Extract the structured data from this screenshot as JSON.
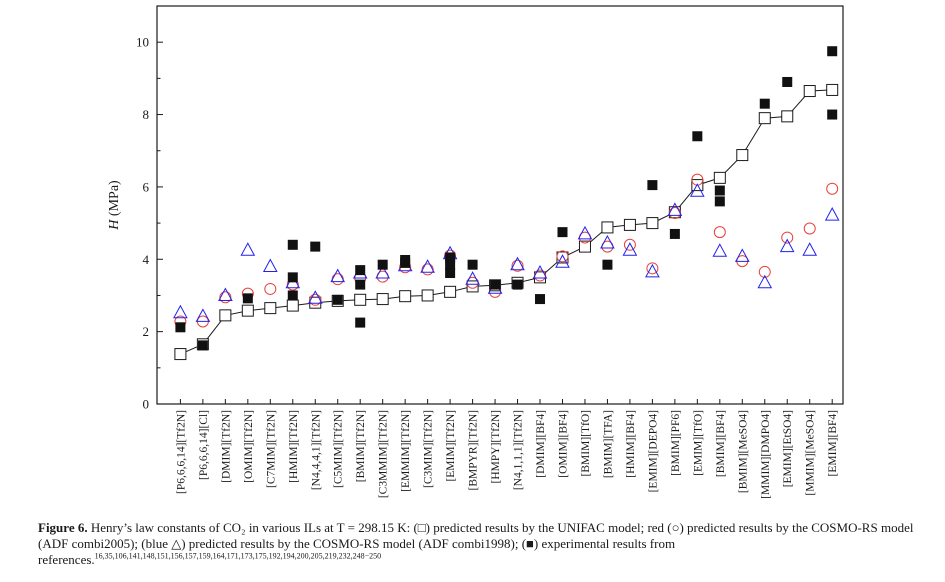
{
  "chart_data": {
    "type": "scatter",
    "title": "",
    "xlabel": "",
    "ylabel": "H (MPa)",
    "ylabel_italic_part": "H",
    "ylabel_unit_part": " (MPa)",
    "ylim": [
      0,
      11
    ],
    "yticks": [
      0,
      2,
      4,
      6,
      8,
      10
    ],
    "categories": [
      "[P6,6,6,14][Tf2N]",
      "[P6,6,6,14][Cl]",
      "[DMIM][Tf2N]",
      "[OMIM][Tf2N]",
      "[C7MIM][Tf2N]",
      "[HMIM][Tf2N]",
      "[N4,4,4,1][Tf2N]",
      "[C5MIM][Tf2N]",
      "[BMIM][Tf2N]",
      "[C3MMIM][Tf2N]",
      "[EMMIM][Tf2N]",
      "[C3MIM][Tf2N]",
      "[EMIM][Tf2N]",
      "[BMPYR][Tf2N]",
      "[HMPY][Tf2N]",
      "[N4,1,1,1][Tf2N]",
      "[DMIM][BF4]",
      "[OMIM][BF4]",
      "[BMIM][TfO]",
      "[BMIM][TFA]",
      "[HMIM][BF4]",
      "[EMIM][DEPO4]",
      "[BMIM][PF6]",
      "[EMIM][TfO]",
      "[BMIM][BF4]",
      "[BMIM][MeSO4]",
      "[MMIM][DMPO4]",
      "[EMIM][EtSO4]",
      "[MMIM][MeSO4]",
      "[EMIM][BF4]"
    ],
    "series": [
      {
        "name": "UNIFAC",
        "marker": "open-square",
        "color": "#1a1a1a",
        "line": true,
        "values": [
          1.38,
          1.65,
          2.45,
          2.58,
          2.65,
          2.72,
          2.8,
          2.85,
          2.88,
          2.9,
          2.98,
          3.0,
          3.1,
          3.25,
          3.28,
          3.35,
          3.5,
          4.05,
          4.35,
          4.88,
          4.95,
          5.0,
          5.3,
          6.05,
          6.25,
          6.88,
          7.9,
          7.95,
          8.65,
          8.68
        ]
      },
      {
        "name": "COSMO-RS (ADF combi2005)",
        "marker": "open-circle",
        "color": "#e8403a",
        "line": false,
        "values": [
          2.28,
          2.28,
          2.95,
          3.05,
          3.18,
          3.3,
          2.88,
          3.45,
          3.48,
          3.52,
          3.78,
          3.72,
          4.1,
          3.35,
          3.1,
          3.82,
          3.55,
          4.08,
          4.6,
          4.35,
          4.4,
          3.75,
          5.28,
          6.2,
          4.75,
          3.95,
          3.65,
          4.6,
          4.85,
          5.95
        ]
      },
      {
        "name": "COSMO-RS (ADF combi1998)",
        "marker": "open-triangle",
        "color": "#2222ee",
        "line": false,
        "values": [
          2.52,
          2.42,
          3.0,
          4.25,
          3.8,
          3.35,
          2.92,
          3.52,
          3.62,
          3.62,
          3.82,
          3.78,
          4.15,
          3.45,
          3.2,
          3.85,
          3.62,
          3.92,
          4.7,
          4.45,
          4.25,
          3.65,
          5.35,
          5.88,
          4.22,
          4.08,
          3.35,
          4.35,
          4.25,
          5.22
        ]
      },
      {
        "name": "Experimental",
        "marker": "filled-square",
        "color": "#111111",
        "line": false,
        "points": [
          [
            0,
            2.12
          ],
          [
            1,
            1.62
          ],
          [
            3,
            2.92
          ],
          [
            5,
            4.4
          ],
          [
            5,
            3.5
          ],
          [
            5,
            3.0
          ],
          [
            6,
            4.35
          ],
          [
            7,
            2.88
          ],
          [
            8,
            3.7
          ],
          [
            8,
            3.3
          ],
          [
            8,
            2.25
          ],
          [
            9,
            3.85
          ],
          [
            10,
            3.9
          ],
          [
            10,
            3.98
          ],
          [
            12,
            4.05
          ],
          [
            12,
            3.85
          ],
          [
            12,
            3.62
          ],
          [
            13,
            3.85
          ],
          [
            14,
            3.3
          ],
          [
            15,
            3.3
          ],
          [
            16,
            2.9
          ],
          [
            17,
            4.75
          ],
          [
            19,
            3.85
          ],
          [
            21,
            6.05
          ],
          [
            22,
            4.7
          ],
          [
            23,
            7.4
          ],
          [
            24,
            5.9
          ],
          [
            24,
            5.6
          ],
          [
            26,
            8.3
          ],
          [
            27,
            8.9
          ],
          [
            29,
            9.75
          ],
          [
            29,
            8.0
          ]
        ]
      }
    ],
    "legend": "none"
  },
  "caption": {
    "label": "Figure 6.",
    "text": " Henry’s law constants of CO₂ in various ILs at T = 298.15 K: (□) predicted results by the UNIFAC model; red (○) predicted results by the COSMO-RS model (ADF combi2005); (blue △) predicted results by the COSMO-RS model (ADF combi1998); (■) experimental results from references.",
    "refs": "16,35,106,141,148,151,156,157,159,164,171,173,175,192,194,200,205,219,232,248−250"
  }
}
